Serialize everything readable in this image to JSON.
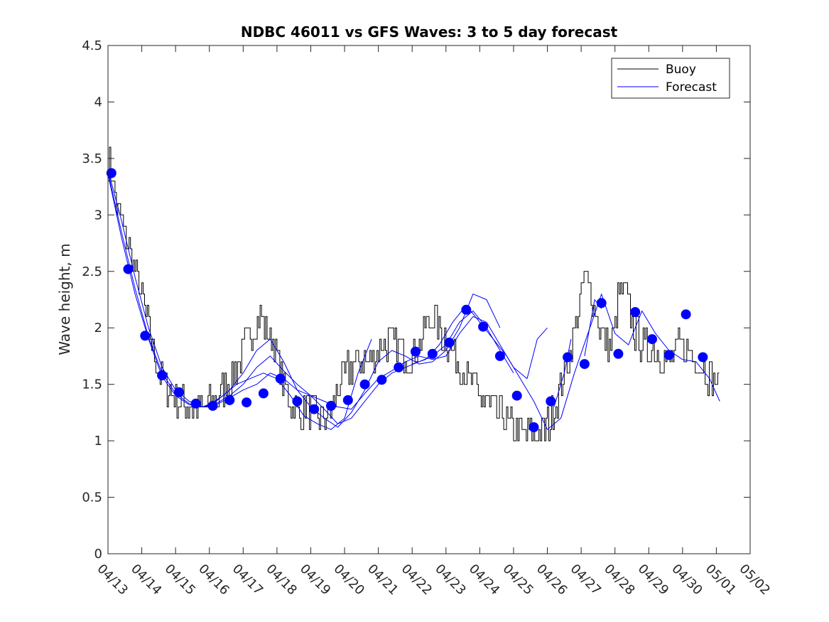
{
  "chart_data": {
    "type": "line",
    "title": "NDBC 46011 vs GFS Waves: 3 to 5 day forecast",
    "xlabel": "",
    "ylabel": "Wave height, m",
    "ylim": [
      0,
      4.5
    ],
    "yticks": [
      "0",
      "0.5",
      "1",
      "1.5",
      "2",
      "2.5",
      "3",
      "3.5",
      "4",
      "4.5"
    ],
    "xlim": [
      "04/13",
      "05/02"
    ],
    "xticks": [
      "04/13",
      "04/14",
      "04/15",
      "04/16",
      "04/17",
      "04/18",
      "04/19",
      "04/20",
      "04/21",
      "04/22",
      "04/23",
      "04/24",
      "04/25",
      "04/26",
      "04/27",
      "04/28",
      "04/29",
      "04/30",
      "05/01",
      "05/02"
    ],
    "grid": false,
    "legend": {
      "placement": "top-right",
      "entries": [
        "Buoy",
        "Forecast"
      ]
    },
    "colors": {
      "buoy": "#000000",
      "forecast": "#0000ff",
      "markers": "#0000ff"
    },
    "buoy_anchor_points": {
      "x_days_since_0413": [
        0,
        0.1,
        0.25,
        0.45,
        0.6,
        0.8,
        1.0,
        1.2,
        1.4,
        1.6,
        1.8,
        2.0,
        2.2,
        2.5,
        2.8,
        3.0,
        3.3,
        3.6,
        3.9,
        4.2,
        4.5,
        4.7,
        4.9,
        5.1,
        5.3,
        5.5,
        5.7,
        5.9,
        6.1,
        6.3,
        6.5,
        6.7,
        6.9,
        7.0,
        7.2,
        7.5,
        7.8,
        8.1,
        8.4,
        8.7,
        9.0,
        9.3,
        9.6,
        9.9,
        10.2,
        10.5,
        10.8,
        11.1,
        11.4,
        11.7,
        12.0,
        12.3,
        12.6,
        12.9,
        13.2,
        13.5,
        13.7,
        13.9,
        14.1,
        14.3,
        14.5,
        14.7,
        14.9,
        15.1,
        15.3,
        15.5,
        15.7,
        15.9,
        16.1,
        16.3,
        16.5,
        16.7,
        16.9,
        17.1,
        17.3,
        17.5,
        17.7,
        17.9,
        18.1
      ],
      "y": [
        3.45,
        3.4,
        3.1,
        2.85,
        2.75,
        2.5,
        2.3,
        2.0,
        1.75,
        1.55,
        1.45,
        1.38,
        1.32,
        1.3,
        1.28,
        1.32,
        1.42,
        1.55,
        1.72,
        1.95,
        2.1,
        1.95,
        1.85,
        1.6,
        1.4,
        1.3,
        1.22,
        1.3,
        1.25,
        1.2,
        1.22,
        1.35,
        1.55,
        1.6,
        1.65,
        1.7,
        1.75,
        1.85,
        1.9,
        1.8,
        1.75,
        1.95,
        2.1,
        1.95,
        1.8,
        1.6,
        1.5,
        1.35,
        1.28,
        1.2,
        1.1,
        1.05,
        1.05,
        1.05,
        1.3,
        1.6,
        1.85,
        2.15,
        2.45,
        2.3,
        2.05,
        1.9,
        1.85,
        2.25,
        2.35,
        2.0,
        1.9,
        1.8,
        1.85,
        1.75,
        1.7,
        1.75,
        1.85,
        1.8,
        1.75,
        1.68,
        1.6,
        1.55,
        1.45
      ]
    },
    "forecast_markers": {
      "x_days_since_0413": [
        0.1,
        0.6,
        1.1,
        1.6,
        2.1,
        2.6,
        3.1,
        3.6,
        4.1,
        4.6,
        5.1,
        5.6,
        6.1,
        6.6,
        7.1,
        7.6,
        8.1,
        8.6,
        9.1,
        9.6,
        10.1,
        10.6,
        11.1,
        11.6,
        12.1,
        12.6,
        13.1,
        13.6,
        14.1,
        14.6,
        15.1,
        15.6,
        16.1,
        16.6,
        17.1,
        17.6
      ],
      "y": [
        3.37,
        2.52,
        1.93,
        1.58,
        1.43,
        1.33,
        1.31,
        1.36,
        1.34,
        1.42,
        1.55,
        1.35,
        1.28,
        1.31,
        1.36,
        1.5,
        1.54,
        1.65,
        1.79,
        1.77,
        1.87,
        2.16,
        2.01,
        1.75,
        1.4,
        1.12,
        1.35,
        1.74,
        1.68,
        2.22,
        1.77,
        2.14,
        1.9,
        1.76,
        2.12,
        1.74
      ]
    },
    "forecast_lines": [
      {
        "x_days_since_0413": [
          0.0,
          0.4,
          0.8,
          1.2,
          1.6,
          2.0,
          2.4,
          2.8,
          3.2,
          3.6,
          4.0,
          4.4,
          4.8,
          5.2,
          5.6,
          6.0,
          6.4,
          6.8,
          7.2,
          7.6,
          8.0,
          8.4,
          8.8,
          9.2,
          9.6,
          10.0,
          10.4,
          10.8,
          11.2,
          11.6,
          12.0,
          12.4
        ],
        "y": [
          3.4,
          2.95,
          2.45,
          2.0,
          1.65,
          1.45,
          1.35,
          1.3,
          1.32,
          1.38,
          1.45,
          1.5,
          1.6,
          1.55,
          1.45,
          1.4,
          1.35,
          1.3,
          1.28,
          1.42,
          1.55,
          1.62,
          1.7,
          1.75,
          1.72,
          1.75,
          1.95,
          2.1,
          2.05,
          1.85,
          1.65,
          1.55
        ]
      },
      {
        "x_days_since_0413": [
          0.0,
          0.4,
          0.8,
          1.2,
          1.6,
          2.0,
          2.4,
          2.8,
          3.2,
          3.6,
          4.0,
          4.4,
          4.8,
          5.2,
          5.6,
          6.0,
          6.4,
          6.8,
          7.2,
          7.6,
          8.0,
          8.4,
          8.8,
          9.2,
          9.6,
          10.0,
          10.4,
          10.8,
          11.2,
          11.6,
          12.0
        ],
        "y": [
          3.38,
          2.85,
          2.35,
          1.92,
          1.6,
          1.42,
          1.33,
          1.3,
          1.33,
          1.4,
          1.5,
          1.65,
          1.75,
          1.62,
          1.5,
          1.4,
          1.28,
          1.15,
          1.2,
          1.35,
          1.5,
          1.6,
          1.65,
          1.7,
          1.75,
          1.85,
          2.05,
          2.15,
          2.0,
          1.8,
          1.6
        ]
      },
      {
        "x_days_since_0413": [
          0.0,
          0.4,
          0.8,
          1.2,
          1.6,
          2.0,
          2.4,
          2.8,
          3.2,
          3.6,
          4.0,
          4.4,
          4.8,
          5.2,
          5.6,
          6.0,
          6.4,
          6.8,
          7.2,
          7.6,
          8.0,
          8.4,
          8.8,
          9.2,
          9.6,
          10.0,
          10.4,
          10.8,
          11.2,
          11.6
        ],
        "y": [
          3.36,
          2.8,
          2.3,
          1.9,
          1.57,
          1.4,
          1.32,
          1.3,
          1.35,
          1.45,
          1.6,
          1.8,
          1.9,
          1.7,
          1.45,
          1.3,
          1.2,
          1.12,
          1.25,
          1.45,
          1.7,
          1.8,
          1.75,
          1.68,
          1.7,
          1.8,
          2.0,
          2.3,
          2.25,
          2.0
        ]
      },
      {
        "x_days_since_0413": [
          3.0,
          3.4,
          3.8,
          4.2,
          4.6,
          5.0,
          5.4,
          5.8,
          6.2,
          6.6,
          7.0,
          7.4,
          7.8
        ],
        "y": [
          1.32,
          1.4,
          1.5,
          1.55,
          1.6,
          1.55,
          1.4,
          1.22,
          1.15,
          1.1,
          1.2,
          1.6,
          1.9
        ]
      },
      {
        "x_days_since_0413": [
          9.0,
          9.4,
          9.8,
          10.2,
          10.6,
          11.0,
          11.4,
          11.8,
          12.2,
          12.6,
          13.0,
          13.4,
          13.8,
          14.2,
          14.6,
          15.0,
          15.4,
          15.8,
          16.2,
          16.6,
          17.0,
          17.4,
          17.8,
          18.1
        ],
        "y": [
          1.68,
          1.72,
          1.85,
          2.05,
          2.2,
          2.05,
          1.9,
          1.75,
          1.55,
          1.35,
          1.1,
          1.2,
          1.6,
          1.95,
          2.3,
          1.95,
          1.85,
          2.15,
          1.95,
          1.8,
          1.72,
          1.7,
          1.55,
          1.35
        ]
      },
      {
        "x_days_since_0413": [
          12.4,
          12.7,
          13.0
        ],
        "y": [
          1.55,
          1.9,
          2.0
        ]
      },
      {
        "x_days_since_0413": [
          13.2,
          13.5,
          13.7
        ],
        "y": [
          1.3,
          1.6,
          1.9
        ]
      },
      {
        "x_days_since_0413": [
          14.1,
          14.4,
          14.6
        ],
        "y": [
          1.75,
          2.25,
          2.17
        ]
      }
    ]
  }
}
